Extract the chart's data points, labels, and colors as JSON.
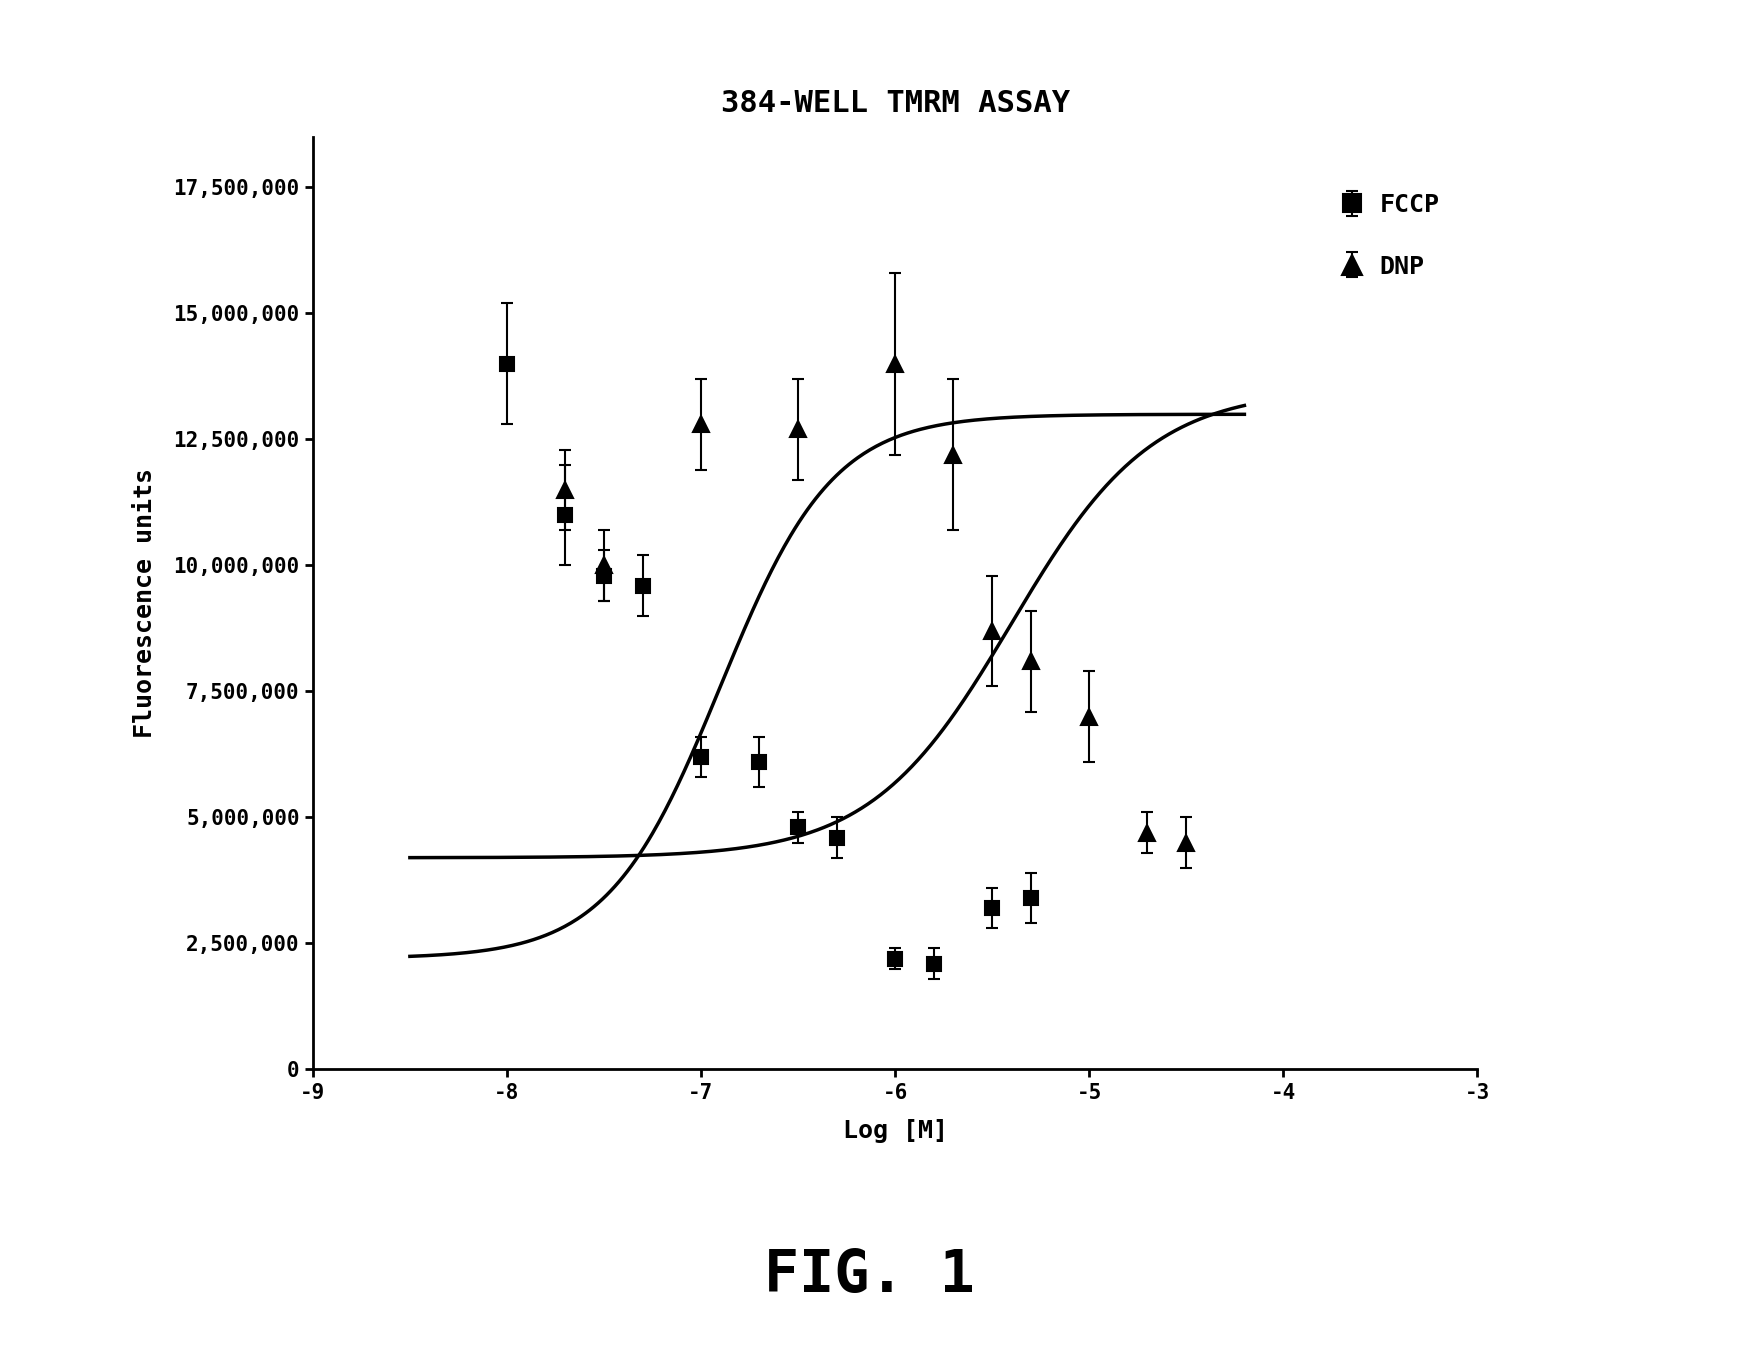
{
  "title": "384-WELL TMRM ASSAY",
  "xlabel": "Log [M]",
  "ylabel": "Fluorescence units",
  "fig_label": "FIG. 1",
  "legend_fccp": "FCCP",
  "legend_dnp": "DNP",
  "xlim": [
    -9,
    -3
  ],
  "ylim": [
    0,
    18500000
  ],
  "xticks": [
    -9,
    -8,
    -7,
    -6,
    -5,
    -4,
    -3
  ],
  "yticks": [
    0,
    2500000,
    5000000,
    7500000,
    10000000,
    12500000,
    15000000,
    17500000
  ],
  "ytick_labels": [
    "0",
    "2,500,000",
    "5,000,000",
    "7,500,000",
    "10,000,000",
    "12,500,000",
    "15,000,000",
    "17,500,000"
  ],
  "fccp_x": [
    -8.0,
    -7.7,
    -7.5,
    -7.3,
    -7.0,
    -6.7,
    -6.5,
    -6.3,
    -6.0,
    -5.8,
    -5.5,
    -5.3
  ],
  "fccp_y": [
    14000000,
    11000000,
    9800000,
    9600000,
    6200000,
    6100000,
    4800000,
    4600000,
    2200000,
    2100000,
    3200000,
    3400000
  ],
  "fccp_yerr": [
    1200000,
    1000000,
    500000,
    600000,
    400000,
    500000,
    300000,
    400000,
    200000,
    300000,
    400000,
    500000
  ],
  "dnp_x": [
    -7.7,
    -7.5,
    -7.0,
    -6.5,
    -6.0,
    -5.7,
    -5.5,
    -5.3,
    -5.0,
    -4.7,
    -4.5
  ],
  "dnp_y": [
    11500000,
    10000000,
    12800000,
    12700000,
    14000000,
    12200000,
    8700000,
    8100000,
    7000000,
    4700000,
    4500000
  ],
  "dnp_yerr": [
    800000,
    700000,
    900000,
    1000000,
    1800000,
    1500000,
    1100000,
    1000000,
    900000,
    400000,
    500000
  ],
  "color": "#000000",
  "background": "#ffffff"
}
